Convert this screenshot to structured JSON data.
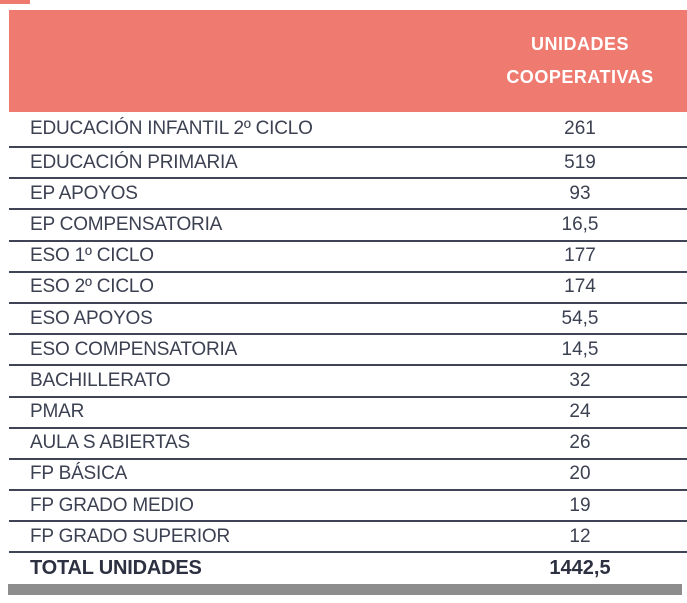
{
  "header": {
    "line1": "UNIDADES",
    "line2": "COOPERATIVAS"
  },
  "rows": [
    {
      "label": "EDUCACIÓN INFANTIL 2º CICLO",
      "value": "261"
    },
    {
      "label": "EDUCACIÓN PRIMARIA",
      "value": "519"
    },
    {
      "label": "EP APOYOS",
      "value": "93"
    },
    {
      "label": "EP COMPENSATORIA",
      "value": "16,5"
    },
    {
      "label": "ESO 1º CICLO",
      "value": "177"
    },
    {
      "label": "ESO 2º CICLO",
      "value": "174"
    },
    {
      "label": "ESO APOYOS",
      "value": "54,5"
    },
    {
      "label": "ESO COMPENSATORIA",
      "value": "14,5"
    },
    {
      "label": "BACHILLERATO",
      "value": "32"
    },
    {
      "label": "PMAR",
      "value": "24"
    },
    {
      "label": "AULA S ABIERTAS",
      "value": "26"
    },
    {
      "label": "FP BÁSICA",
      "value": "20"
    },
    {
      "label": "FP GRADO MEDIO",
      "value": "19"
    },
    {
      "label": "FP GRADO SUPERIOR",
      "value": "12"
    }
  ],
  "total": {
    "label": "TOTAL UNIDADES",
    "value": "1442,5"
  },
  "colors": {
    "accent": "#ee7a70",
    "text": "#3c4152",
    "line": "#3e4356",
    "total_text": "#2c3040",
    "bottom_bar": "#8d8d8d"
  },
  "chart_data": {
    "type": "table",
    "title": "UNIDADES COOPERATIVAS",
    "columns": [
      "",
      "UNIDADES COOPERATIVAS"
    ],
    "categories": [
      "EDUCACIÓN INFANTIL 2º CICLO",
      "EDUCACIÓN PRIMARIA",
      "EP APOYOS",
      "EP COMPENSATORIA",
      "ESO 1º CICLO",
      "ESO 2º CICLO",
      "ESO APOYOS",
      "ESO COMPENSATORIA",
      "BACHILLERATO",
      "PMAR",
      "AULA S ABIERTAS",
      "FP BÁSICA",
      "FP GRADO MEDIO",
      "FP GRADO SUPERIOR"
    ],
    "values": [
      261,
      519,
      93,
      16.5,
      177,
      174,
      54.5,
      14.5,
      32,
      24,
      26,
      20,
      19,
      12
    ],
    "total": 1442.5
  }
}
